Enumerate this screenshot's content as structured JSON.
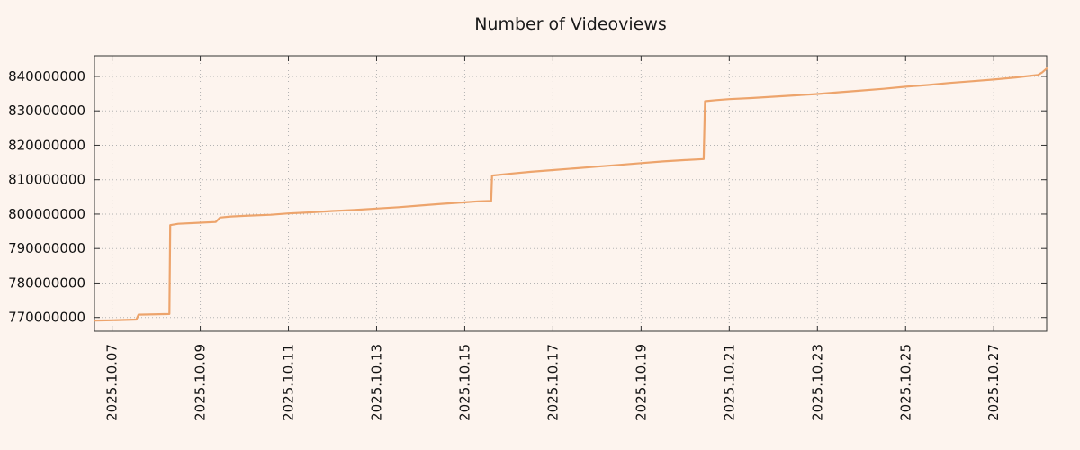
{
  "chart_data": {
    "type": "line",
    "title": "Number of Videoviews",
    "xlabel": "",
    "ylabel": "",
    "legend": "none",
    "grid": true,
    "background_color": "#fdf4ee",
    "line_color": "#eda46c",
    "x_tick_labels": [
      "2025.10.07",
      "2025.10.09",
      "2025.10.11",
      "2025.10.13",
      "2025.10.15",
      "2025.10.17",
      "2025.10.19",
      "2025.10.21",
      "2025.10.23",
      "2025.10.25",
      "2025.10.27"
    ],
    "x_tick_values": [
      7,
      9,
      11,
      13,
      15,
      17,
      19,
      21,
      23,
      25,
      27
    ],
    "y_tick_values": [
      770000000,
      780000000,
      790000000,
      800000000,
      810000000,
      820000000,
      830000000,
      840000000
    ],
    "xlim": [
      6.6,
      28.2
    ],
    "ylim": [
      766000000,
      846000000
    ],
    "series": [
      {
        "name": "videoviews",
        "points": [
          [
            6.6,
            769100000
          ],
          [
            7.0,
            769200000
          ],
          [
            7.55,
            769400000
          ],
          [
            7.6,
            770800000
          ],
          [
            8.3,
            771000000
          ],
          [
            8.32,
            796800000
          ],
          [
            8.5,
            797200000
          ],
          [
            9.0,
            797500000
          ],
          [
            9.35,
            797700000
          ],
          [
            9.45,
            799000000
          ],
          [
            9.7,
            799300000
          ],
          [
            10.0,
            799500000
          ],
          [
            10.6,
            799800000
          ],
          [
            11.0,
            800200000
          ],
          [
            11.5,
            800500000
          ],
          [
            12.0,
            800900000
          ],
          [
            12.5,
            801200000
          ],
          [
            13.0,
            801600000
          ],
          [
            13.5,
            802000000
          ],
          [
            14.0,
            802500000
          ],
          [
            14.5,
            803000000
          ],
          [
            15.0,
            803400000
          ],
          [
            15.3,
            803700000
          ],
          [
            15.6,
            803800000
          ],
          [
            15.62,
            811200000
          ],
          [
            16.0,
            811700000
          ],
          [
            16.5,
            812300000
          ],
          [
            17.0,
            812800000
          ],
          [
            17.5,
            813300000
          ],
          [
            18.0,
            813800000
          ],
          [
            18.5,
            814300000
          ],
          [
            19.0,
            814800000
          ],
          [
            19.5,
            815300000
          ],
          [
            20.0,
            815700000
          ],
          [
            20.42,
            816000000
          ],
          [
            20.45,
            832800000
          ],
          [
            20.7,
            833100000
          ],
          [
            21.0,
            833400000
          ],
          [
            21.5,
            833700000
          ],
          [
            22.0,
            834100000
          ],
          [
            22.5,
            834500000
          ],
          [
            23.0,
            834900000
          ],
          [
            23.5,
            835400000
          ],
          [
            24.0,
            835900000
          ],
          [
            24.5,
            836400000
          ],
          [
            25.0,
            837000000
          ],
          [
            25.5,
            837500000
          ],
          [
            26.0,
            838100000
          ],
          [
            26.5,
            838600000
          ],
          [
            27.0,
            839100000
          ],
          [
            27.5,
            839700000
          ],
          [
            28.0,
            840400000
          ],
          [
            28.1,
            841200000
          ],
          [
            28.2,
            842300000
          ]
        ]
      }
    ]
  }
}
